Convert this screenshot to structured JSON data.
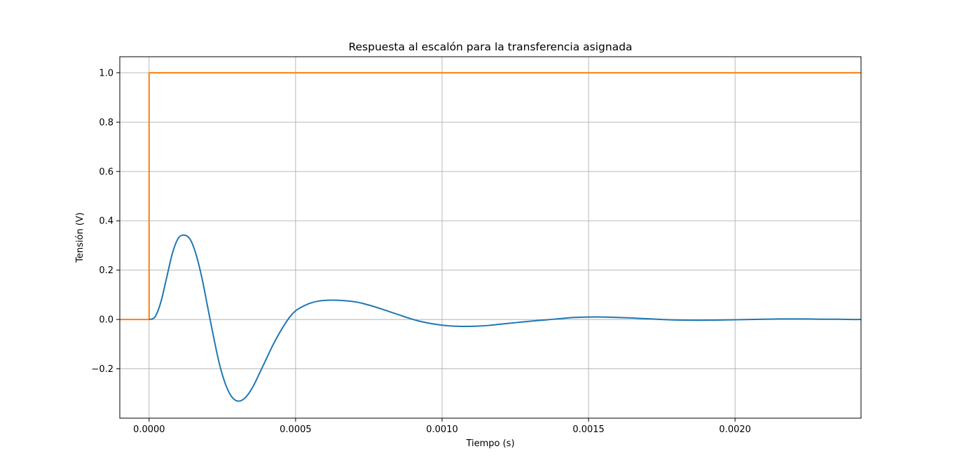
{
  "chart_data": {
    "type": "line",
    "title": "Respuesta al escalón para la transferencia asignada",
    "xlabel": "Tiempo (s)",
    "ylabel": "Tensión (V)",
    "xlim": [
      -0.0001,
      0.00243
    ],
    "ylim": [
      -0.4,
      1.065
    ],
    "grid": true,
    "xticks": [
      {
        "value": 0.0,
        "label": "0.0000"
      },
      {
        "value": 0.0005,
        "label": "0.0005"
      },
      {
        "value": 0.001,
        "label": "0.0010"
      },
      {
        "value": 0.0015,
        "label": "0.0015"
      },
      {
        "value": 0.002,
        "label": "0.0020"
      }
    ],
    "yticks": [
      {
        "value": -0.2,
        "label": "−0.2"
      },
      {
        "value": 0.0,
        "label": "0.0"
      },
      {
        "value": 0.2,
        "label": "0.2"
      },
      {
        "value": 0.4,
        "label": "0.4"
      },
      {
        "value": 0.6,
        "label": "0.6"
      },
      {
        "value": 0.8,
        "label": "0.8"
      },
      {
        "value": 1.0,
        "label": "1.0"
      }
    ],
    "series": [
      {
        "color": "#ff7f0e",
        "x": [
          -0.0001,
          0.0,
          0.0,
          0.00243
        ],
        "y": [
          0.0,
          0.0,
          1.0,
          1.0
        ]
      },
      {
        "color": "#1f77b4",
        "x": [
          0.0,
          2e-05,
          4e-05,
          6e-05,
          8e-05,
          0.0001,
          0.00012,
          0.00014,
          0.00016,
          0.00018,
          0.0002,
          0.00022,
          0.00024,
          0.00026,
          0.00028,
          0.0003,
          0.00032,
          0.00034,
          0.00036,
          0.00038,
          0.0004,
          0.00042,
          0.00044,
          0.00046,
          0.00048,
          0.0005,
          0.00052,
          0.00055,
          0.00058,
          0.00061,
          0.00064,
          0.00067,
          0.0007,
          0.00073,
          0.00076,
          0.0008,
          0.00084,
          0.00088,
          0.00092,
          0.00096,
          0.001,
          0.00104,
          0.00108,
          0.00112,
          0.00116,
          0.0012,
          0.00125,
          0.0013,
          0.00135,
          0.0014,
          0.00145,
          0.0015,
          0.00155,
          0.0016,
          0.00165,
          0.0017,
          0.00175,
          0.0018,
          0.00185,
          0.0019,
          0.00195,
          0.002,
          0.00205,
          0.0021,
          0.00215,
          0.0022,
          0.00225,
          0.0023,
          0.00235,
          0.0024,
          0.00243
        ],
        "y": [
          0.0,
          0.01,
          0.07,
          0.17,
          0.27,
          0.33,
          0.342,
          0.325,
          0.265,
          0.17,
          0.05,
          -0.07,
          -0.18,
          -0.26,
          -0.31,
          -0.33,
          -0.325,
          -0.3,
          -0.26,
          -0.21,
          -0.16,
          -0.11,
          -0.065,
          -0.025,
          0.01,
          0.035,
          0.05,
          0.066,
          0.075,
          0.078,
          0.078,
          0.076,
          0.072,
          0.065,
          0.055,
          0.04,
          0.024,
          0.008,
          -0.006,
          -0.016,
          -0.023,
          -0.027,
          -0.028,
          -0.027,
          -0.024,
          -0.019,
          -0.013,
          -0.007,
          -0.002,
          0.003,
          0.008,
          0.01,
          0.01,
          0.008,
          0.006,
          0.003,
          0.0,
          -0.002,
          -0.003,
          -0.003,
          -0.002,
          -0.001,
          0.0,
          0.001,
          0.002,
          0.002,
          0.002,
          0.001,
          0.001,
          0.0,
          0.0
        ]
      }
    ]
  }
}
